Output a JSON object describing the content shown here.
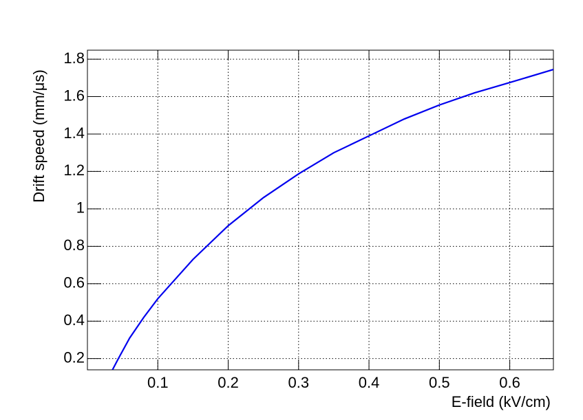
{
  "chart_data": {
    "type": "line",
    "x_label": "E-field (kV/cm)",
    "y_label": "Drift speed (mm/μs)",
    "x": [
      0.0356,
      0.044,
      0.06,
      0.08,
      0.1,
      0.15,
      0.2,
      0.25,
      0.3,
      0.35,
      0.4,
      0.45,
      0.5,
      0.55,
      0.6,
      0.662
    ],
    "series": [
      {
        "name": "Drift speed",
        "color": "#0000ee",
        "values": [
          0.14,
          0.2,
          0.31,
          0.42,
          0.52,
          0.73,
          0.91,
          1.06,
          1.187,
          1.3,
          1.39,
          1.48,
          1.555,
          1.62,
          1.675,
          1.745
        ]
      }
    ],
    "xlim": [
      0,
      0.662
    ],
    "xticks": [
      0.1,
      0.2,
      0.3,
      0.4,
      0.5,
      0.6
    ],
    "ylim": [
      0.14,
      1.848
    ],
    "yticks": [
      0.2,
      0.4,
      0.6,
      0.8,
      1,
      1.2,
      1.4,
      1.6,
      1.8
    ],
    "grid": true
  }
}
